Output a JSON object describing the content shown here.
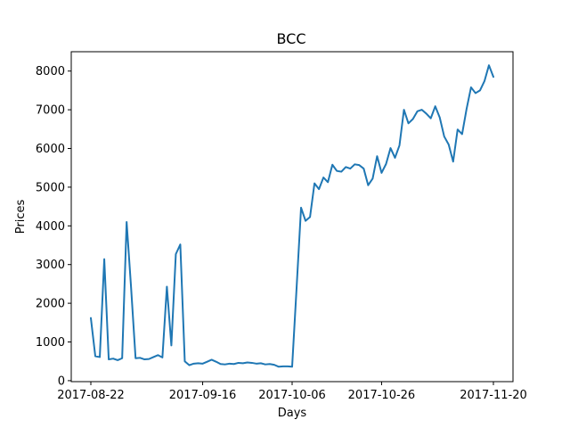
{
  "chart_data": {
    "type": "line",
    "title": "BCC",
    "xlabel": "Days",
    "ylabel": "Prices",
    "ylim": [
      0,
      8500
    ],
    "xticks": [
      "2017-08-22",
      "2017-09-16",
      "2017-10-06",
      "2017-10-26",
      "2017-11-20"
    ],
    "yticks": [
      0,
      1000,
      2000,
      3000,
      4000,
      5000,
      6000,
      7000,
      8000
    ],
    "grid": false,
    "line_color": "#1f77b4",
    "series": [
      {
        "x": [
          "2017-08-22",
          "2017-08-23",
          "2017-08-24",
          "2017-08-25",
          "2017-08-26",
          "2017-08-27",
          "2017-08-28",
          "2017-08-29",
          "2017-08-30",
          "2017-08-31",
          "2017-09-01",
          "2017-09-02",
          "2017-09-03",
          "2017-09-04",
          "2017-09-05",
          "2017-09-06",
          "2017-09-07",
          "2017-09-08",
          "2017-09-09",
          "2017-09-10",
          "2017-09-11",
          "2017-09-12",
          "2017-09-13",
          "2017-09-14",
          "2017-09-15",
          "2017-09-16",
          "2017-09-17",
          "2017-09-18",
          "2017-09-19",
          "2017-09-20",
          "2017-09-21",
          "2017-09-22",
          "2017-09-23",
          "2017-09-24",
          "2017-09-25",
          "2017-09-26",
          "2017-09-27",
          "2017-09-28",
          "2017-09-29",
          "2017-09-30",
          "2017-10-01",
          "2017-10-02",
          "2017-10-03",
          "2017-10-04",
          "2017-10-05",
          "2017-10-06",
          "2017-10-07",
          "2017-10-08",
          "2017-10-09",
          "2017-10-10",
          "2017-10-11",
          "2017-10-12",
          "2017-10-13",
          "2017-10-14",
          "2017-10-15",
          "2017-10-16",
          "2017-10-17",
          "2017-10-18",
          "2017-10-19",
          "2017-10-20",
          "2017-10-21",
          "2017-10-22",
          "2017-10-23",
          "2017-10-24",
          "2017-10-25",
          "2017-10-26",
          "2017-10-27",
          "2017-10-28",
          "2017-10-29",
          "2017-10-30",
          "2017-10-31",
          "2017-11-01",
          "2017-11-02",
          "2017-11-03",
          "2017-11-04",
          "2017-11-05",
          "2017-11-06",
          "2017-11-07",
          "2017-11-08",
          "2017-11-09",
          "2017-11-10",
          "2017-11-11",
          "2017-11-12",
          "2017-11-13",
          "2017-11-14",
          "2017-11-15",
          "2017-11-16",
          "2017-11-17",
          "2017-11-18",
          "2017-11-19",
          "2017-11-20"
        ],
        "values": [
          1620,
          630,
          610,
          3140,
          550,
          570,
          530,
          580,
          4100,
          2400,
          580,
          590,
          550,
          560,
          610,
          660,
          600,
          2430,
          910,
          3270,
          3520,
          500,
          400,
          440,
          450,
          440,
          490,
          540,
          490,
          430,
          420,
          440,
          430,
          460,
          450,
          470,
          460,
          440,
          450,
          420,
          430,
          410,
          360,
          370,
          370,
          360,
          2400,
          4470,
          4130,
          4230,
          5100,
          4950,
          5250,
          5130,
          5580,
          5420,
          5400,
          5520,
          5480,
          5590,
          5570,
          5480,
          5050,
          5220,
          5800,
          5370,
          5600,
          6010,
          5760,
          6080,
          7000,
          6650,
          6760,
          6960,
          7000,
          6900,
          6780,
          7090,
          6800,
          6310,
          6100,
          5660,
          6490,
          6370,
          7020,
          7580,
          7430,
          7500,
          7740,
          8150,
          7850
        ]
      }
    ]
  }
}
